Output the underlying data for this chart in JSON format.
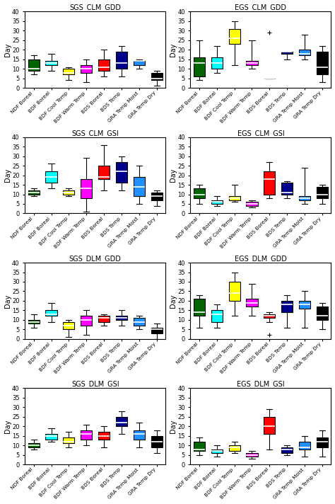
{
  "titles": [
    "SGS_CLM_GDD",
    "EGS_CLM_GDD",
    "SGS_CLM_GSI",
    "EGS_CLM_GSI",
    "SGS_DLM_GDD",
    "EGS_DLM_GDD",
    "SGS_DLM_GSI",
    "EGS_DLM_GSI"
  ],
  "categories": [
    "NDF Boreal",
    "BDF Boreal",
    "BDF Cool Temp",
    "BDF Warm Temp",
    "BDS Boreal",
    "BDS Temp",
    "GRA Temp Moist",
    "GRA Temp Dry"
  ],
  "colors": [
    "#006400",
    "#00FFFF",
    "#FFFF00",
    "#FF00FF",
    "#FF0000",
    "#00008B",
    "#1E90FF",
    "#000000"
  ],
  "ylabel": "Day",
  "ylim": [
    0,
    40
  ],
  "yticks": [
    0,
    5,
    10,
    15,
    20,
    25,
    30,
    35,
    40
  ],
  "boxes": {
    "SGS_CLM_GDD": [
      {
        "whislo": 7,
        "q1": 9,
        "med": 10,
        "q3": 15,
        "whishi": 17,
        "fliers": []
      },
      {
        "whislo": 9,
        "q1": 12,
        "med": 13,
        "q3": 14,
        "whishi": 18,
        "fliers": []
      },
      {
        "whislo": 4,
        "q1": 7,
        "med": 8,
        "q3": 10,
        "whishi": 11,
        "fliers": []
      },
      {
        "whislo": 3,
        "q1": 8,
        "med": 10,
        "q3": 12,
        "whishi": 15,
        "fliers": []
      },
      {
        "whislo": 6,
        "q1": 9,
        "med": 11,
        "q3": 15,
        "whishi": 20,
        "fliers": []
      },
      {
        "whislo": 6,
        "q1": 10,
        "med": 13,
        "q3": 19,
        "whishi": 22,
        "fliers": []
      },
      {
        "whislo": 10,
        "q1": 12,
        "med": 14,
        "q3": 14,
        "whishi": 15,
        "fliers": []
      },
      {
        "whislo": 1,
        "q1": 4,
        "med": 5,
        "q3": 8,
        "whishi": 9,
        "fliers": []
      }
    ],
    "EGS_CLM_GDD": [
      {
        "whislo": 4,
        "q1": 6,
        "med": 13,
        "q3": 16,
        "whishi": 25,
        "fliers": []
      },
      {
        "whislo": 8,
        "q1": 10,
        "med": 13,
        "q3": 16,
        "whishi": 22,
        "fliers": []
      },
      {
        "whislo": 12,
        "q1": 23,
        "med": 26,
        "q3": 31,
        "whishi": 35,
        "fliers": []
      },
      {
        "whislo": 10,
        "q1": 12,
        "med": 13,
        "q3": 14,
        "whishi": 25,
        "fliers": []
      },
      {
        "whislo": 5,
        "q1": 5,
        "med": 5,
        "q3": 5,
        "whishi": 5,
        "fliers": [
          29
        ]
      },
      {
        "whislo": 15,
        "q1": 18,
        "med": 19,
        "q3": 19,
        "whishi": 19,
        "fliers": []
      },
      {
        "whislo": 15,
        "q1": 17,
        "med": 18,
        "q3": 20,
        "whishi": 28,
        "fliers": []
      },
      {
        "whislo": 3,
        "q1": 7,
        "med": 11,
        "q3": 19,
        "whishi": 22,
        "fliers": []
      }
    ],
    "SGS_CLM_GSI": [
      {
        "whislo": 9,
        "q1": 10,
        "med": 11,
        "q3": 12,
        "whishi": 13,
        "fliers": []
      },
      {
        "whislo": 13,
        "q1": 16,
        "med": 19,
        "q3": 22,
        "whishi": 26,
        "fliers": []
      },
      {
        "whislo": 9,
        "q1": 10,
        "med": 11,
        "q3": 12,
        "whishi": 13,
        "fliers": []
      },
      {
        "whislo": 1,
        "q1": 8,
        "med": 13,
        "q3": 18,
        "whishi": 29,
        "fliers": []
      },
      {
        "whislo": 12,
        "q1": 18,
        "med": 19,
        "q3": 25,
        "whishi": 36,
        "fliers": []
      },
      {
        "whislo": 12,
        "q1": 16,
        "med": 22,
        "q3": 27,
        "whishi": 30,
        "fliers": []
      },
      {
        "whislo": 5,
        "q1": 9,
        "med": 14,
        "q3": 19,
        "whishi": 25,
        "fliers": []
      },
      {
        "whislo": 4,
        "q1": 7,
        "med": 9,
        "q3": 11,
        "whishi": 12,
        "fliers": []
      }
    ],
    "EGS_CLM_GSI": [
      {
        "whislo": 5,
        "q1": 8,
        "med": 10,
        "q3": 13,
        "whishi": 15,
        "fliers": []
      },
      {
        "whislo": 4,
        "q1": 5,
        "med": 6,
        "q3": 7,
        "whishi": 9,
        "fliers": []
      },
      {
        "whislo": 6,
        "q1": 7,
        "med": 8,
        "q3": 9,
        "whishi": 15,
        "fliers": []
      },
      {
        "whislo": 3,
        "q1": 4,
        "med": 5,
        "q3": 6,
        "whishi": 7,
        "fliers": []
      },
      {
        "whislo": 8,
        "q1": 10,
        "med": 18,
        "q3": 22,
        "whishi": 27,
        "fliers": []
      },
      {
        "whislo": 8,
        "q1": 10,
        "med": 11,
        "q3": 16,
        "whishi": 17,
        "fliers": []
      },
      {
        "whislo": 5,
        "q1": 7,
        "med": 8,
        "q3": 9,
        "whishi": 24,
        "fliers": []
      },
      {
        "whislo": 5,
        "q1": 8,
        "med": 10,
        "q3": 14,
        "whishi": 15,
        "fliers": []
      }
    ],
    "SGS_DLM_GDD": [
      {
        "whislo": 6,
        "q1": 8,
        "med": 9,
        "q3": 10,
        "whishi": 13,
        "fliers": []
      },
      {
        "whislo": 9,
        "q1": 12,
        "med": 13,
        "q3": 15,
        "whishi": 19,
        "fliers": []
      },
      {
        "whislo": 1,
        "q1": 5,
        "med": 7,
        "q3": 9,
        "whishi": 10,
        "fliers": []
      },
      {
        "whislo": 2,
        "q1": 7,
        "med": 10,
        "q3": 12,
        "whishi": 15,
        "fliers": []
      },
      {
        "whislo": 7,
        "q1": 9,
        "med": 11,
        "q3": 12,
        "whishi": 13,
        "fliers": []
      },
      {
        "whislo": 7,
        "q1": 10,
        "med": 11,
        "q3": 12,
        "whishi": 15,
        "fliers": []
      },
      {
        "whislo": 5,
        "q1": 7,
        "med": 9,
        "q3": 11,
        "whishi": 12,
        "fliers": []
      },
      {
        "whislo": 0,
        "q1": 3,
        "med": 5,
        "q3": 6,
        "whishi": 8,
        "fliers": []
      }
    ],
    "EGS_DLM_GDD": [
      {
        "whislo": 6,
        "q1": 12,
        "med": 14,
        "q3": 21,
        "whishi": 23,
        "fliers": []
      },
      {
        "whislo": 6,
        "q1": 9,
        "med": 13,
        "q3": 15,
        "whishi": 18,
        "fliers": []
      },
      {
        "whislo": 12,
        "q1": 20,
        "med": 24,
        "q3": 30,
        "whishi": 35,
        "fliers": []
      },
      {
        "whislo": 12,
        "q1": 17,
        "med": 19,
        "q3": 21,
        "whishi": 29,
        "fliers": []
      },
      {
        "whislo": 9,
        "q1": 11,
        "med": 12,
        "q3": 13,
        "whishi": 14,
        "fliers": [
          2
        ]
      },
      {
        "whislo": 6,
        "q1": 14,
        "med": 18,
        "q3": 20,
        "whishi": 23,
        "fliers": []
      },
      {
        "whislo": 6,
        "q1": 16,
        "med": 18,
        "q3": 20,
        "whishi": 25,
        "fliers": []
      },
      {
        "whislo": 5,
        "q1": 10,
        "med": 12,
        "q3": 17,
        "whishi": 19,
        "fliers": []
      }
    ],
    "SGS_DLM_GSI": [
      {
        "whislo": 8,
        "q1": 9,
        "med": 10,
        "q3": 11,
        "whishi": 13,
        "fliers": []
      },
      {
        "whislo": 12,
        "q1": 13,
        "med": 15,
        "q3": 16,
        "whishi": 19,
        "fliers": []
      },
      {
        "whislo": 9,
        "q1": 11,
        "med": 12,
        "q3": 14,
        "whishi": 17,
        "fliers": []
      },
      {
        "whislo": 10,
        "q1": 13,
        "med": 16,
        "q3": 18,
        "whishi": 21,
        "fliers": []
      },
      {
        "whislo": 9,
        "q1": 13,
        "med": 15,
        "q3": 17,
        "whishi": 20,
        "fliers": []
      },
      {
        "whislo": 16,
        "q1": 20,
        "med": 22,
        "q3": 25,
        "whishi": 28,
        "fliers": []
      },
      {
        "whislo": 9,
        "q1": 13,
        "med": 16,
        "q3": 18,
        "whishi": 22,
        "fliers": []
      },
      {
        "whislo": 6,
        "q1": 9,
        "med": 12,
        "q3": 15,
        "whishi": 18,
        "fliers": []
      }
    ],
    "EGS_DLM_GSI": [
      {
        "whislo": 5,
        "q1": 7,
        "med": 8,
        "q3": 12,
        "whishi": 14,
        "fliers": []
      },
      {
        "whislo": 4,
        "q1": 6,
        "med": 7,
        "q3": 8,
        "whishi": 10,
        "fliers": []
      },
      {
        "whislo": 6,
        "q1": 7,
        "med": 9,
        "q3": 10,
        "whishi": 12,
        "fliers": []
      },
      {
        "whislo": 3,
        "q1": 4,
        "med": 5,
        "q3": 6,
        "whishi": 7,
        "fliers": []
      },
      {
        "whislo": 8,
        "q1": 16,
        "med": 20,
        "q3": 25,
        "whishi": 29,
        "fliers": []
      },
      {
        "whislo": 5,
        "q1": 6,
        "med": 8,
        "q3": 9,
        "whishi": 10,
        "fliers": []
      },
      {
        "whislo": 4,
        "q1": 8,
        "med": 9,
        "q3": 12,
        "whishi": 15,
        "fliers": []
      },
      {
        "whislo": 4,
        "q1": 9,
        "med": 12,
        "q3": 14,
        "whishi": 18,
        "fliers": []
      }
    ]
  }
}
